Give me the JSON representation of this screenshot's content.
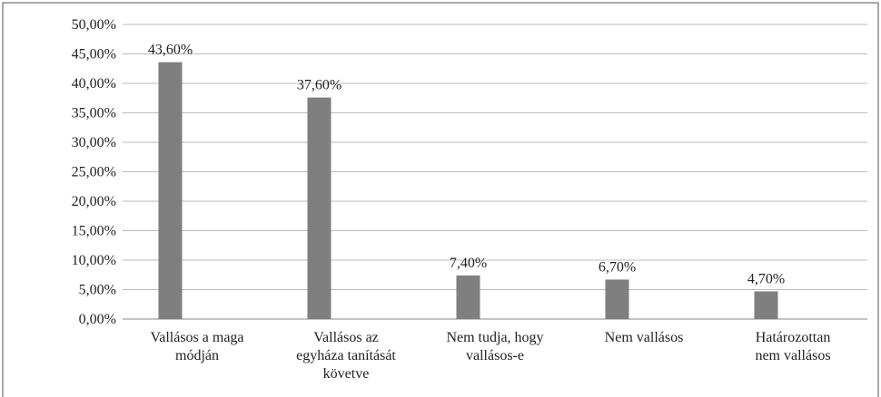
{
  "chart_data": {
    "type": "bar",
    "categories": [
      [
        "Vallásos a maga",
        "módján"
      ],
      [
        "Vallásos az",
        "egyháza tanítását",
        "követve"
      ],
      [
        "Nem tudja, hogy",
        "vallásos-e"
      ],
      [
        "Nem vallásos"
      ],
      [
        "Határozottan",
        "nem vallásos"
      ]
    ],
    "values": [
      43.6,
      37.6,
      7.4,
      6.7,
      4.7
    ],
    "value_labels": [
      "43,60%",
      "37,60%",
      "7,40%",
      "6,70%",
      "4,70%"
    ],
    "color": "#7f7f7f",
    "ylim": [
      0,
      50
    ],
    "yticks": [
      {
        "value": 0,
        "label": "0,00%"
      },
      {
        "value": 5,
        "label": "5,00%"
      },
      {
        "value": 10,
        "label": "10,00%"
      },
      {
        "value": 15,
        "label": "15,00%"
      },
      {
        "value": 20,
        "label": "20,00%"
      },
      {
        "value": 25,
        "label": "25,00%"
      },
      {
        "value": 30,
        "label": "30,00%"
      },
      {
        "value": 35,
        "label": "35,00%"
      },
      {
        "value": 40,
        "label": "40,00%"
      },
      {
        "value": 45,
        "label": "45,00%"
      },
      {
        "value": 50,
        "label": "50,00%"
      }
    ],
    "grid": true
  }
}
